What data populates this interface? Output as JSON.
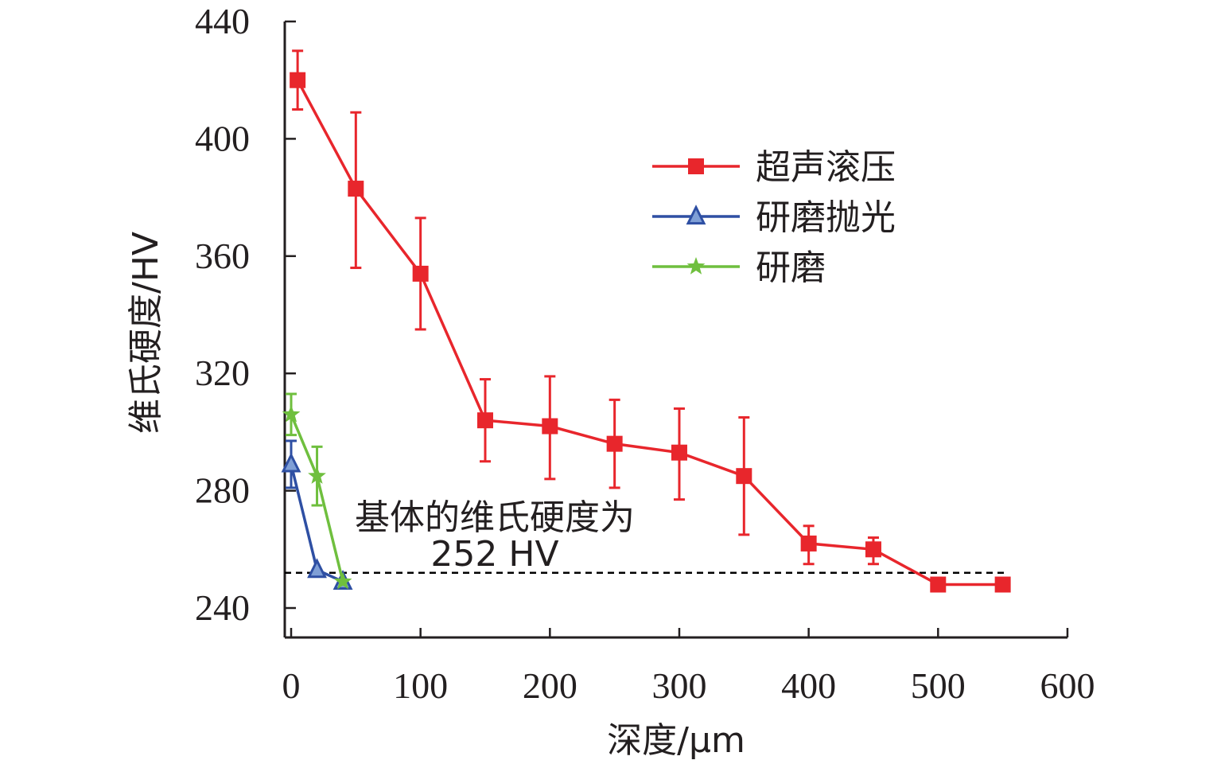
{
  "chart_data": {
    "type": "line",
    "xlabel": "深度/μm",
    "ylabel": "维氏硬度/HV",
    "xlim": [
      -5,
      600
    ],
    "ylim": [
      232,
      440
    ],
    "xticks": [
      "0",
      "100",
      "200",
      "300",
      "400",
      "500",
      "600"
    ],
    "yticks": [
      "240",
      "280",
      "320",
      "360",
      "400",
      "440"
    ],
    "grid": false,
    "legend_position": "top-right",
    "series": [
      {
        "name": "超声滚压",
        "color": "#e8262c",
        "marker": "square",
        "x": [
          5,
          50,
          100,
          150,
          200,
          250,
          300,
          350,
          400,
          450,
          500,
          550
        ],
        "y": [
          420,
          383,
          354,
          304,
          302,
          296,
          293,
          285,
          262,
          260,
          248,
          248
        ],
        "err_low": [
          410,
          356,
          335,
          290,
          284,
          281,
          277,
          265,
          255,
          255,
          null,
          null
        ],
        "err_high": [
          430,
          409,
          373,
          318,
          319,
          311,
          308,
          305,
          268,
          264,
          null,
          null
        ]
      },
      {
        "name": "研磨抛光",
        "color": "#2e4fa3",
        "marker": "triangle",
        "x": [
          0,
          20,
          40
        ],
        "y": [
          289,
          253,
          249
        ],
        "err_low": [
          281,
          null,
          null
        ],
        "err_high": [
          297,
          null,
          null
        ]
      },
      {
        "name": "研磨",
        "color": "#6fbf3e",
        "marker": "star",
        "x": [
          0,
          20,
          40
        ],
        "y": [
          306,
          285,
          249
        ],
        "err_low": [
          299,
          275,
          null
        ],
        "err_high": [
          313,
          295,
          null
        ]
      }
    ],
    "reference_line": {
      "y": 252,
      "style": "dashed",
      "color": "#000000"
    },
    "annotation": {
      "line1": "基体的维氏硬度为",
      "line2": "252 HV"
    }
  }
}
